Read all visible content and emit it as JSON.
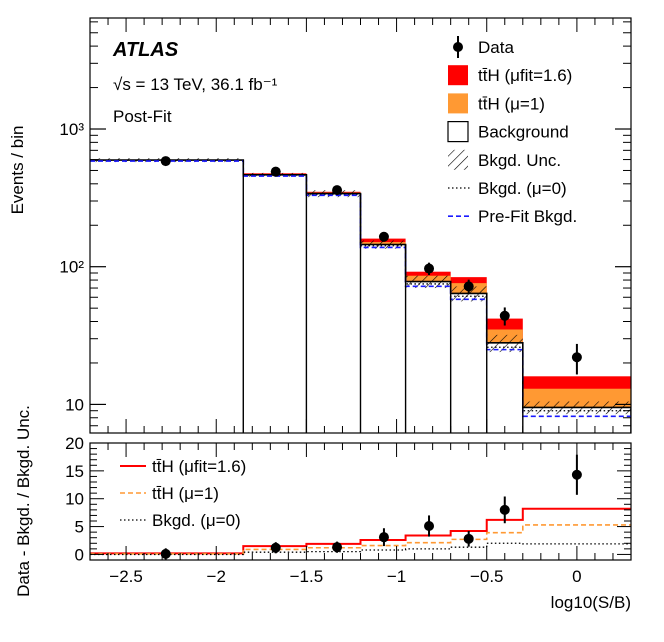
{
  "chart_data": [
    {
      "type": "bar",
      "title": "",
      "xlabel": "log10(S/B)",
      "ylabel": "Events / bin",
      "yscale": "log",
      "ylim": [
        6.2,
        6400
      ],
      "xlim": [
        -2.7,
        0.3
      ],
      "y_tick_labels": [
        "10",
        "10²",
        "10³"
      ],
      "annotations": {
        "experiment": "ATLAS",
        "energy": "√s = 13 TeV, 36.1 fb⁻¹",
        "status": "Post-Fit"
      },
      "bin_edges": [
        -2.7,
        -1.85,
        -1.5,
        -1.2,
        -0.95,
        -0.7,
        -0.5,
        -0.3,
        0.3
      ],
      "series": [
        {
          "name": "Background",
          "values": [
            595,
            465,
            340,
            145,
            78,
            64,
            28,
            9.5
          ]
        },
        {
          "name": "Bkgd. Unc. low",
          "values": [
            575,
            450,
            320,
            135,
            70,
            56,
            24,
            8.5
          ]
        },
        {
          "name": "Bkgd. Unc. high",
          "values": [
            615,
            480,
            360,
            155,
            86,
            72,
            32,
            10.5
          ]
        },
        {
          "name": "ttH (μ=1)",
          "values": [
            597,
            472,
            346,
            151,
            86,
            76,
            35,
            13
          ]
        },
        {
          "name": "ttH (μ_fit=1.6)",
          "values": [
            598,
            477,
            350,
            160,
            92,
            84,
            42,
            16
          ]
        },
        {
          "name": "Bkgd. (μ=0)",
          "values": [
            592,
            460,
            335,
            142,
            75,
            61,
            26,
            9
          ]
        },
        {
          "name": "Pre-Fit Bkgd.",
          "values": [
            585,
            455,
            330,
            138,
            72,
            58,
            25,
            8.2
          ]
        }
      ],
      "data_points": {
        "name": "Data",
        "x": [
          -2.28,
          -1.67,
          -1.33,
          -1.07,
          -0.82,
          -0.6,
          -0.4,
          0.0
        ],
        "y": [
          585,
          490,
          360,
          165,
          97,
          72,
          44,
          22
        ],
        "err": [
          25,
          22,
          19,
          13,
          10,
          8.5,
          6.6,
          5.5
        ]
      },
      "legend": [
        {
          "label": "Data",
          "style": "marker"
        },
        {
          "label": "tt̄H (μfit=1.6)",
          "style": "fill-red"
        },
        {
          "label": "tt̄H (μ=1)",
          "style": "fill-orange"
        },
        {
          "label": "Background",
          "style": "fill-empty"
        },
        {
          "label": "Bkgd. Unc.",
          "style": "hatch"
        },
        {
          "label": "Bkgd. (μ=0)",
          "style": "dotted"
        },
        {
          "label": "Pre-Fit Bkgd.",
          "style": "dashed-blue"
        }
      ]
    },
    {
      "type": "line",
      "title": "",
      "xlabel": "log10(S/B)",
      "ylabel": "Data - Bkgd. / Bkgd. Unc.",
      "ylim": [
        -1,
        20
      ],
      "xlim": [
        -2.7,
        0.3
      ],
      "x_tick_labels": [
        "−2.5",
        "−2",
        "−1.5",
        "−1",
        "−0.5",
        "0"
      ],
      "y_tick_labels": [
        "0",
        "5",
        "10",
        "15",
        "20"
      ],
      "bin_edges": [
        -2.7,
        -1.85,
        -1.5,
        -1.2,
        -0.95,
        -0.7,
        -0.5,
        -0.3,
        0.3
      ],
      "series": [
        {
          "name": "ttH (μfit=1.6)",
          "values": [
            0.2,
            1.5,
            1.9,
            2.6,
            3.4,
            4.2,
            6.2,
            8.2
          ]
        },
        {
          "name": "ttH (μ=1)",
          "values": [
            0.1,
            0.9,
            1.2,
            1.6,
            2.1,
            2.7,
            3.9,
            5.3
          ]
        },
        {
          "name": "Bkgd. (μ=0)",
          "values": [
            0.0,
            0.4,
            0.5,
            0.8,
            1.0,
            1.3,
            2.0,
            1.9
          ]
        }
      ],
      "data_points": {
        "name": "Data",
        "x": [
          -2.28,
          -1.67,
          -1.33,
          -1.07,
          -0.82,
          -0.6,
          -0.4,
          0.0
        ],
        "y": [
          0.1,
          1.2,
          1.3,
          3.1,
          5.1,
          2.8,
          8.0,
          14.3
        ],
        "err": [
          1.0,
          1.0,
          1.0,
          1.6,
          1.9,
          1.4,
          2.4,
          3.6
        ]
      },
      "legend": [
        {
          "label": "tt̄H (μfit=1.6)",
          "style": "solid-red"
        },
        {
          "label": "tt̄H (μ=1)",
          "style": "dashed-orange"
        },
        {
          "label": "Bkgd. (μ=0)",
          "style": "dotted"
        }
      ]
    }
  ],
  "colors": {
    "tth_fit": "#ff0000",
    "tth_sm": "#ff9933",
    "prefit": "#1a1aff",
    "data": "#000000"
  }
}
